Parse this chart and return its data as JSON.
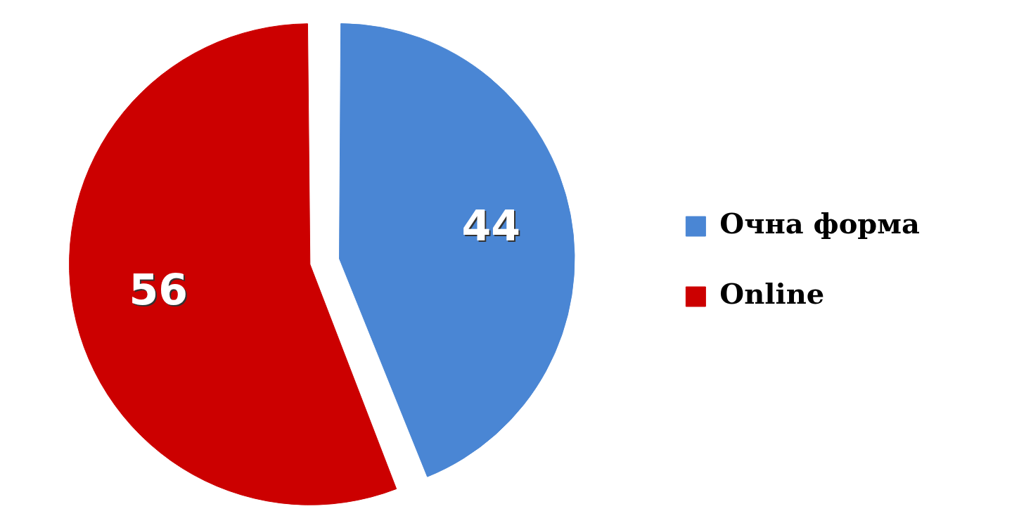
{
  "chart_data": {
    "type": "pie",
    "categories": [
      "Очна форма",
      "Online"
    ],
    "values": [
      44,
      56
    ],
    "colors": [
      "#4a86d4",
      "#cc0000"
    ],
    "data_labels": true,
    "legend": "right"
  }
}
